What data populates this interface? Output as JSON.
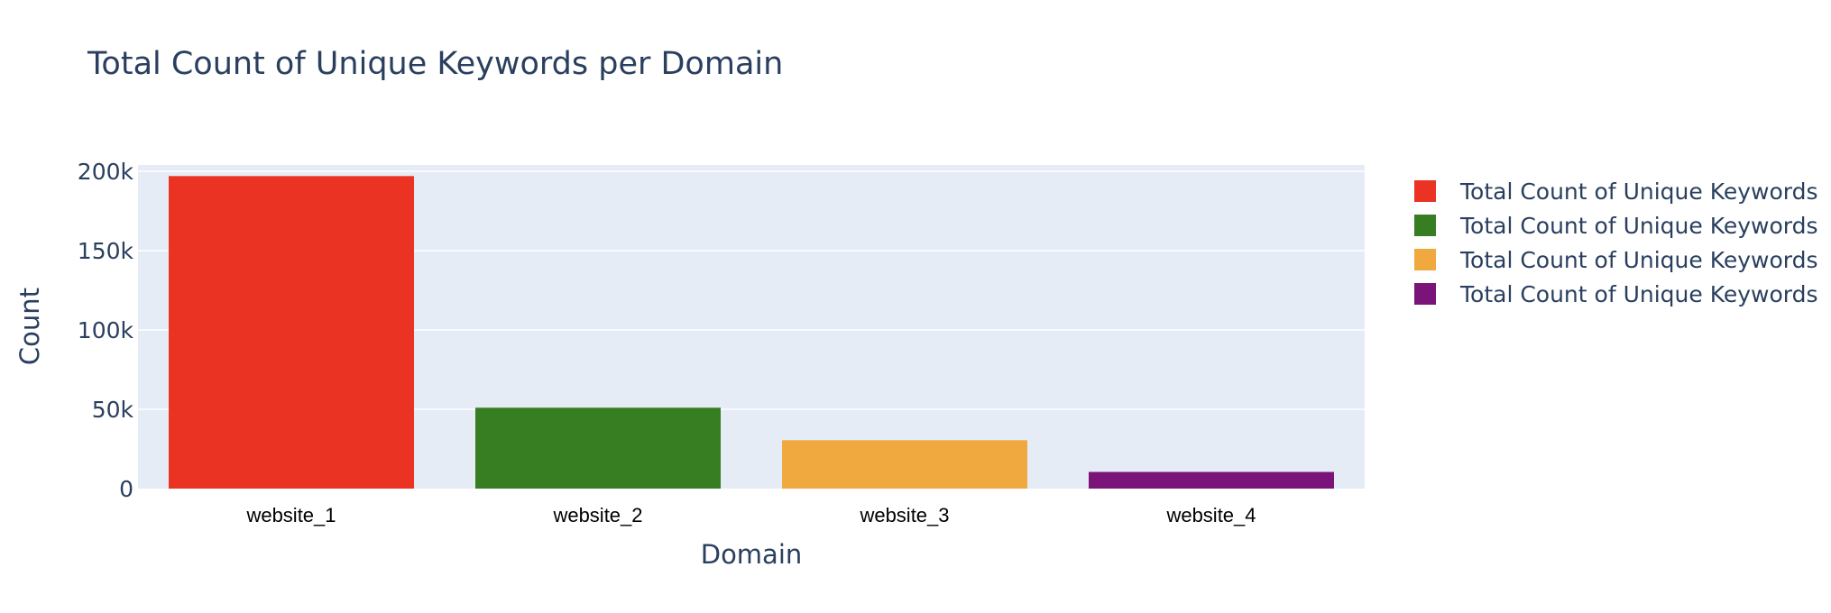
{
  "chart_data": {
    "type": "bar",
    "title": "Total Count of Unique Keywords per Domain",
    "xlabel": "Domain",
    "ylabel": "Count",
    "categories": [
      "website_1",
      "website_2",
      "website_3",
      "website_4"
    ],
    "series": [
      {
        "name": "Total Count of Unique Keywords",
        "category": "website_1",
        "value": 197000,
        "color": "#EB3323"
      },
      {
        "name": "Total Count of Unique Keywords",
        "category": "website_2",
        "value": 51000,
        "color": "#377E22"
      },
      {
        "name": "Total Count of Unique Keywords",
        "category": "website_3",
        "value": 30500,
        "color": "#F0A93F"
      },
      {
        "name": "Total Count of Unique Keywords",
        "category": "website_4",
        "value": 10500,
        "color": "#7A1479"
      }
    ],
    "ylim": [
      0,
      204000
    ],
    "yticks": [
      {
        "value": 0,
        "label": "0"
      },
      {
        "value": 50000,
        "label": "50k"
      },
      {
        "value": 100000,
        "label": "100k"
      },
      {
        "value": 150000,
        "label": "150k"
      },
      {
        "value": 200000,
        "label": "200k"
      }
    ],
    "grid": true,
    "legend_position": "top-right",
    "plot_background": "#E5ECF6",
    "gridline_color": "#FFFFFF"
  }
}
